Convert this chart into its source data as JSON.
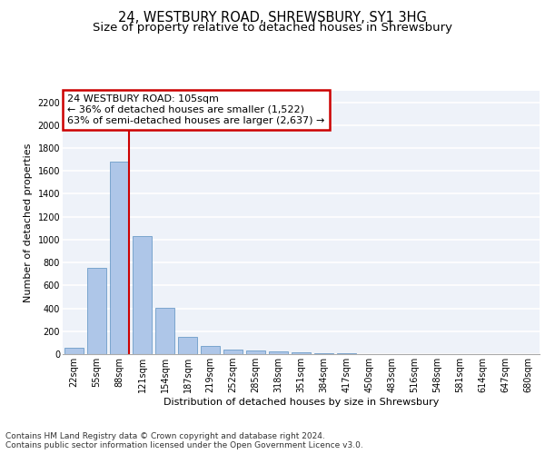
{
  "title": "24, WESTBURY ROAD, SHREWSBURY, SY1 3HG",
  "subtitle": "Size of property relative to detached houses in Shrewsbury",
  "xlabel": "Distribution of detached houses by size in Shrewsbury",
  "ylabel": "Number of detached properties",
  "bar_labels": [
    "22sqm",
    "55sqm",
    "88sqm",
    "121sqm",
    "154sqm",
    "187sqm",
    "219sqm",
    "252sqm",
    "285sqm",
    "318sqm",
    "351sqm",
    "384sqm",
    "417sqm",
    "450sqm",
    "483sqm",
    "516sqm",
    "548sqm",
    "581sqm",
    "614sqm",
    "647sqm",
    "680sqm"
  ],
  "bar_values": [
    55,
    750,
    1680,
    1035,
    405,
    148,
    75,
    42,
    35,
    22,
    18,
    10,
    8,
    0,
    0,
    0,
    0,
    0,
    0,
    0,
    0
  ],
  "bar_color": "#aec6e8",
  "bar_edge_color": "#5a8fc0",
  "vline_color": "#cc0000",
  "annotation_text": "24 WESTBURY ROAD: 105sqm\n← 36% of detached houses are smaller (1,522)\n63% of semi-detached houses are larger (2,637) →",
  "annotation_box_color": "#ffffff",
  "annotation_box_edge": "#cc0000",
  "ylim": [
    0,
    2300
  ],
  "yticks": [
    0,
    200,
    400,
    600,
    800,
    1000,
    1200,
    1400,
    1600,
    1800,
    2000,
    2200
  ],
  "footer_text": "Contains HM Land Registry data © Crown copyright and database right 2024.\nContains public sector information licensed under the Open Government Licence v3.0.",
  "bg_color": "#eef2f9",
  "grid_color": "#ffffff",
  "title_fontsize": 10.5,
  "subtitle_fontsize": 9.5,
  "label_fontsize": 8,
  "tick_fontsize": 7,
  "annotation_fontsize": 8,
  "footer_fontsize": 6.5
}
